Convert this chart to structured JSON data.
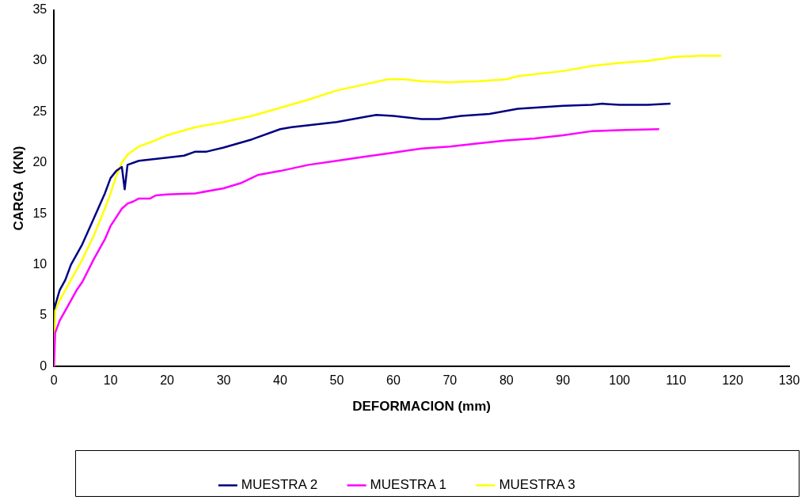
{
  "chart_data": {
    "type": "line",
    "xlabel": "DEFORMACION (mm)",
    "ylabel": "CARGA  (KN)",
    "xlim": [
      0,
      130
    ],
    "xticks": [
      0,
      10,
      20,
      30,
      40,
      50,
      60,
      70,
      80,
      90,
      100,
      110,
      120,
      130
    ],
    "ylim": [
      0,
      35
    ],
    "yticks": [
      0,
      5,
      10,
      15,
      20,
      25,
      30,
      35
    ],
    "grid": false,
    "legend": "bottom",
    "marker": "none",
    "line_style": "solid",
    "series": [
      {
        "name": "MUESTRA 2",
        "color": "#000080",
        "x": [
          0,
          1,
          2,
          3,
          5,
          7,
          9,
          10,
          11,
          12,
          12.5,
          13,
          15,
          20,
          23,
          25,
          27,
          30,
          35,
          40,
          42,
          50,
          55,
          57,
          60,
          65,
          68,
          72,
          77,
          82,
          90,
          95,
          97,
          100,
          105,
          109
        ],
        "values": [
          5.6,
          7.5,
          8.5,
          10,
          12,
          14.5,
          17,
          18.5,
          19.2,
          19.6,
          17.4,
          19.8,
          20.2,
          20.5,
          20.7,
          21.1,
          21.1,
          21.5,
          22.3,
          23.3,
          23.5,
          24,
          24.5,
          24.7,
          24.6,
          24.3,
          24.3,
          24.6,
          24.8,
          25.3,
          25.6,
          25.7,
          25.8,
          25.7,
          25.7,
          25.8
        ]
      },
      {
        "name": "MUESTRA 1",
        "color": "#ff00ff",
        "x": [
          0,
          0.2,
          1,
          2,
          4,
          5,
          7,
          9,
          10,
          12,
          13,
          14,
          15,
          17,
          18,
          20,
          25,
          30,
          33,
          36,
          40,
          45,
          50,
          55,
          60,
          65,
          70,
          75,
          80,
          85,
          90,
          95,
          100,
          107
        ],
        "values": [
          0,
          3.3,
          4.5,
          5.5,
          7.5,
          8.3,
          10.5,
          12.5,
          13.8,
          15.5,
          16,
          16.2,
          16.5,
          16.5,
          16.8,
          16.9,
          17,
          17.5,
          18,
          18.8,
          19.2,
          19.8,
          20.2,
          20.6,
          21,
          21.4,
          21.6,
          21.9,
          22.2,
          22.4,
          22.7,
          23.1,
          23.2,
          23.3
        ]
      },
      {
        "name": "MUESTRA 3",
        "color": "#ffff00",
        "x": [
          0,
          0.2,
          1,
          3,
          5,
          7,
          9,
          10,
          11,
          12,
          13,
          15,
          17,
          20,
          25,
          30,
          35,
          40,
          45,
          50,
          55,
          59,
          62,
          65,
          70,
          75,
          80,
          82,
          90,
          95,
          100,
          105,
          110,
          114,
          118
        ],
        "values": [
          0,
          5.5,
          6.5,
          8.5,
          10.5,
          12.8,
          15.5,
          17,
          18.7,
          20,
          20.8,
          21.6,
          22,
          22.7,
          23.5,
          24,
          24.6,
          25.4,
          26.2,
          27.1,
          27.7,
          28.2,
          28.2,
          28,
          27.9,
          28,
          28.2,
          28.5,
          29,
          29.5,
          29.8,
          30,
          30.4,
          30.5,
          30.5
        ]
      }
    ]
  }
}
